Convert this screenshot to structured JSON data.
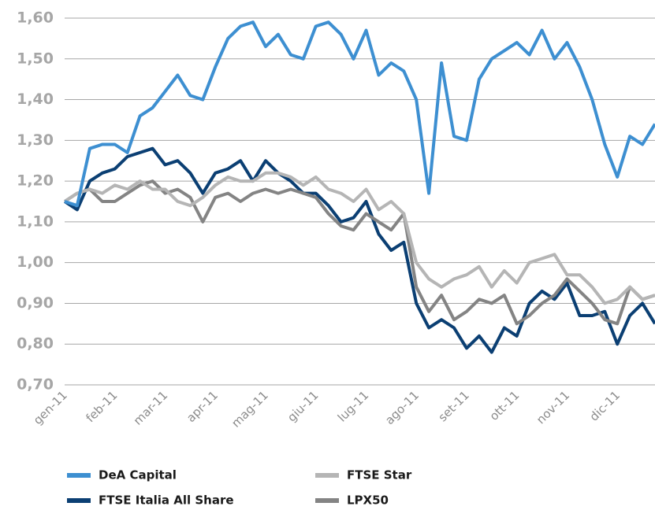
{
  "chart_data": {
    "type": "line",
    "categories": [
      "gen-11",
      null,
      null,
      null,
      "feb-11",
      null,
      null,
      null,
      "mar-11",
      null,
      null,
      null,
      "apr-11",
      null,
      null,
      null,
      "mag-11",
      null,
      null,
      null,
      "giu-11",
      null,
      null,
      null,
      "lug-11",
      null,
      null,
      null,
      "ago-11",
      null,
      null,
      null,
      "set-11",
      null,
      null,
      null,
      "ott-11",
      null,
      null,
      null,
      "nov-11",
      null,
      null,
      null,
      "dic-11",
      null,
      null,
      null
    ],
    "series": [
      {
        "name": "DeA Capital",
        "color": "#3d8fd1",
        "values": [
          1.15,
          1.14,
          1.28,
          1.29,
          1.29,
          1.27,
          1.36,
          1.38,
          1.42,
          1.46,
          1.41,
          1.4,
          1.48,
          1.55,
          1.58,
          1.59,
          1.53,
          1.56,
          1.51,
          1.5,
          1.58,
          1.59,
          1.56,
          1.5,
          1.57,
          1.46,
          1.49,
          1.47,
          1.4,
          1.17,
          1.49,
          1.31,
          1.3,
          1.45,
          1.5,
          1.52,
          1.54,
          1.51,
          1.57,
          1.5,
          1.54,
          1.48,
          1.4,
          1.29,
          1.21,
          1.31,
          1.29,
          1.34
        ]
      },
      {
        "name": "FTSE Italia All Share",
        "color": "#0b3f73",
        "values": [
          1.15,
          1.13,
          1.2,
          1.22,
          1.23,
          1.26,
          1.27,
          1.28,
          1.24,
          1.25,
          1.22,
          1.17,
          1.22,
          1.23,
          1.25,
          1.2,
          1.25,
          1.22,
          1.2,
          1.17,
          1.17,
          1.14,
          1.1,
          1.11,
          1.15,
          1.07,
          1.03,
          1.05,
          0.9,
          0.84,
          0.86,
          0.84,
          0.79,
          0.82,
          0.78,
          0.84,
          0.82,
          0.9,
          0.93,
          0.91,
          0.95,
          0.87,
          0.87,
          0.88,
          0.8,
          0.87,
          0.9,
          0.85
        ]
      },
      {
        "name": "FTSE Star",
        "color": "#b5b5b5",
        "values": [
          1.15,
          1.17,
          1.18,
          1.17,
          1.19,
          1.18,
          1.2,
          1.18,
          1.18,
          1.15,
          1.14,
          1.16,
          1.19,
          1.21,
          1.2,
          1.2,
          1.22,
          1.22,
          1.21,
          1.19,
          1.21,
          1.18,
          1.17,
          1.15,
          1.18,
          1.13,
          1.15,
          1.12,
          1.0,
          0.96,
          0.94,
          0.96,
          0.97,
          0.99,
          0.94,
          0.98,
          0.95,
          1.0,
          1.01,
          1.02,
          0.97,
          0.97,
          0.94,
          0.9,
          0.91,
          0.94,
          0.91,
          0.92
        ]
      },
      {
        "name": "LPX50",
        "color": "#848484",
        "values": [
          1.15,
          1.17,
          1.18,
          1.15,
          1.15,
          1.17,
          1.19,
          1.2,
          1.17,
          1.18,
          1.16,
          1.1,
          1.16,
          1.17,
          1.15,
          1.17,
          1.18,
          1.17,
          1.18,
          1.17,
          1.16,
          1.12,
          1.09,
          1.08,
          1.12,
          1.1,
          1.08,
          1.12,
          0.94,
          0.88,
          0.92,
          0.86,
          0.88,
          0.91,
          0.9,
          0.92,
          0.85,
          0.87,
          0.9,
          0.92,
          0.96,
          0.93,
          0.9,
          0.86,
          0.85,
          0.94,
          0.91,
          0.92
        ]
      }
    ],
    "ylim": [
      0.7,
      1.6
    ],
    "yticks": [
      {
        "value": 0.7,
        "label": "0,70"
      },
      {
        "value": 0.8,
        "label": "0,80"
      },
      {
        "value": 0.9,
        "label": "0,90"
      },
      {
        "value": 1.0,
        "label": "1,00"
      },
      {
        "value": 1.1,
        "label": "1,10"
      },
      {
        "value": 1.2,
        "label": "1,20"
      },
      {
        "value": 1.3,
        "label": "1,30"
      },
      {
        "value": 1.4,
        "label": "1,40"
      },
      {
        "value": 1.5,
        "label": "1,50"
      },
      {
        "value": 1.6,
        "label": "1,60"
      }
    ],
    "grid": true,
    "legend": "bottom"
  }
}
